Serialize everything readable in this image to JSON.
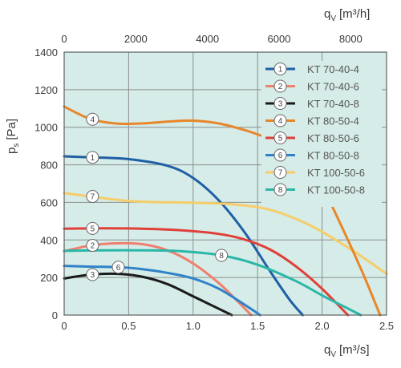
{
  "chart_data": {
    "type": "line",
    "title": "",
    "xlabel": "q",
    "xlabel_sub": "V",
    "xlabel_unit": "[m³/s]",
    "x2label": "q",
    "x2label_sub": "V",
    "x2label_unit": "[m³/h]",
    "ylabel": "p",
    "ylabel_sub": "s",
    "ylabel_unit": "[Pa]",
    "xlim": [
      0,
      2.5
    ],
    "ylim": [
      0,
      1400
    ],
    "x2lim": [
      0,
      9000
    ],
    "x_ticks": [
      "0",
      "0.5",
      "1.0",
      "1.5",
      "2.0",
      "2.5"
    ],
    "y_ticks": [
      "0",
      "200",
      "400",
      "600",
      "800",
      "1000",
      "1200",
      "1400"
    ],
    "x2_ticks": [
      "0",
      "2000",
      "4000",
      "6000",
      "8000"
    ],
    "grid": true,
    "background": "#d6ece8",
    "legend_position": "top-right",
    "series": [
      {
        "marker": "1",
        "name": "KT 70-40-4",
        "color": "#1f5fa6",
        "label_at": 0.22,
        "x": [
          0,
          0.2,
          0.5,
          0.8,
          1.0,
          1.2,
          1.4,
          1.6,
          1.75,
          1.85
        ],
        "y": [
          845,
          840,
          830,
          795,
          730,
          610,
          440,
          230,
          80,
          0
        ]
      },
      {
        "marker": "2",
        "name": "KT 70-40-6",
        "color": "#ef7f6e",
        "label_at": 0.22,
        "x": [
          0,
          0.2,
          0.4,
          0.6,
          0.8,
          1.0,
          1.2,
          1.35,
          1.45
        ],
        "y": [
          340,
          370,
          382,
          378,
          345,
          275,
          170,
          70,
          0
        ]
      },
      {
        "marker": "3",
        "name": "KT 70-40-8",
        "color": "#1a1a1a",
        "label_at": 0.22,
        "x": [
          0,
          0.2,
          0.4,
          0.6,
          0.8,
          1.0,
          1.15,
          1.3
        ],
        "y": [
          195,
          215,
          220,
          205,
          165,
          100,
          50,
          0
        ]
      },
      {
        "marker": "4",
        "name": "KT 80-50-4",
        "color": "#e8862a",
        "label_at": 0.22,
        "x": [
          0,
          0.2,
          0.4,
          0.6,
          0.8,
          1.0,
          1.2,
          1.4,
          1.55
        ],
        "y": [
          1110,
          1045,
          1020,
          1020,
          1030,
          1035,
          1020,
          985,
          950
        ]
      },
      {
        "marker": "5",
        "name": "KT 80-50-6",
        "color": "#e0403a",
        "label_at": 0.22,
        "x": [
          0,
          0.3,
          0.6,
          0.9,
          1.2,
          1.4,
          1.6,
          1.8,
          2.0,
          2.2
        ],
        "y": [
          460,
          462,
          460,
          452,
          432,
          402,
          348,
          258,
          140,
          0
        ]
      },
      {
        "marker": "6",
        "name": "KT 80-50-8",
        "color": "#2f82c8",
        "label_at": 0.42,
        "x": [
          0,
          0.2,
          0.42,
          0.6,
          0.8,
          1.0,
          1.2,
          1.4,
          1.52
        ],
        "y": [
          262,
          258,
          255,
          245,
          225,
          195,
          140,
          55,
          0
        ]
      },
      {
        "marker": "7",
        "name": "KT 100-50-6",
        "color": "#f5cd6a",
        "label_at": 0.22,
        "x": [
          0,
          0.5,
          1.0,
          1.3,
          1.6,
          1.9,
          2.2,
          2.5
        ],
        "y": [
          650,
          608,
          598,
          590,
          560,
          480,
          360,
          220
        ]
      },
      {
        "marker": "8",
        "name": "KT 100-50-8",
        "color": "#2bb7a8",
        "label_at": 1.22,
        "x": [
          0,
          0.3,
          0.6,
          0.9,
          1.22,
          1.5,
          1.8,
          2.0,
          2.2,
          2.3
        ],
        "y": [
          342,
          345,
          345,
          340,
          318,
          268,
          180,
          105,
          35,
          0
        ]
      }
    ],
    "extra_segments": [
      {
        "of_marker": "4",
        "color": "#e8862a",
        "x": [
          2.05,
          2.2,
          2.33,
          2.45
        ],
        "y": [
          620,
          400,
          200,
          0
        ]
      }
    ]
  },
  "legend": {
    "items": [
      {
        "marker": "1",
        "label": "KT 70-40-4"
      },
      {
        "marker": "2",
        "label": "KT 70-40-6"
      },
      {
        "marker": "3",
        "label": "KT 70-40-8"
      },
      {
        "marker": "4",
        "label": "KT 80-50-4"
      },
      {
        "marker": "5",
        "label": "KT 80-50-6"
      },
      {
        "marker": "6",
        "label": "KT 80-50-8"
      },
      {
        "marker": "7",
        "label": "KT 100-50-6"
      },
      {
        "marker": "8",
        "label": "KT 100-50-8"
      }
    ]
  }
}
